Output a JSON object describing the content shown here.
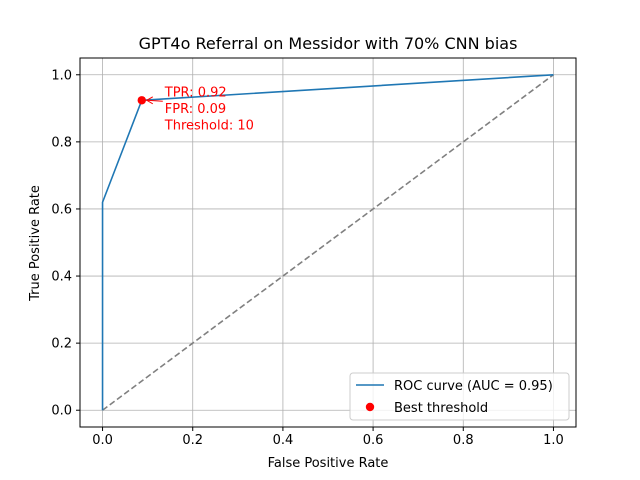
{
  "chart_data": {
    "type": "line",
    "title": "GPT4o Referral on Messidor with 70% CNN bias",
    "xlabel": "False Positive Rate",
    "ylabel": "True Positive Rate",
    "xlim": [
      -0.05,
      1.05
    ],
    "ylim": [
      -0.05,
      1.05
    ],
    "xticks": [
      0.0,
      0.2,
      0.4,
      0.6,
      0.8,
      1.0
    ],
    "yticks": [
      0.0,
      0.2,
      0.4,
      0.6,
      0.8,
      1.0
    ],
    "xtick_labels": [
      "0.0",
      "0.2",
      "0.4",
      "0.6",
      "0.8",
      "1.0"
    ],
    "ytick_labels": [
      "0.0",
      "0.2",
      "0.4",
      "0.6",
      "0.8",
      "1.0"
    ],
    "grid": true,
    "legend_position": "lower-right",
    "series": [
      {
        "name": "ROC curve (AUC = 0.95)",
        "color": "#1f77b4",
        "x": [
          0.0,
          0.0,
          0.0,
          0.087,
          1.0
        ],
        "y": [
          0.0,
          0.62,
          0.62,
          0.924,
          1.0
        ]
      }
    ],
    "diagonal": {
      "x": [
        0.0,
        1.0
      ],
      "y": [
        0.0,
        1.0
      ],
      "color": "#808080",
      "style": "dashed"
    },
    "best_threshold": {
      "name": "Best threshold",
      "x": 0.087,
      "y": 0.924,
      "color": "#ff0000",
      "annotation": [
        "TPR: 0.92",
        "FPR: 0.09",
        "Threshold: 10"
      ]
    }
  }
}
